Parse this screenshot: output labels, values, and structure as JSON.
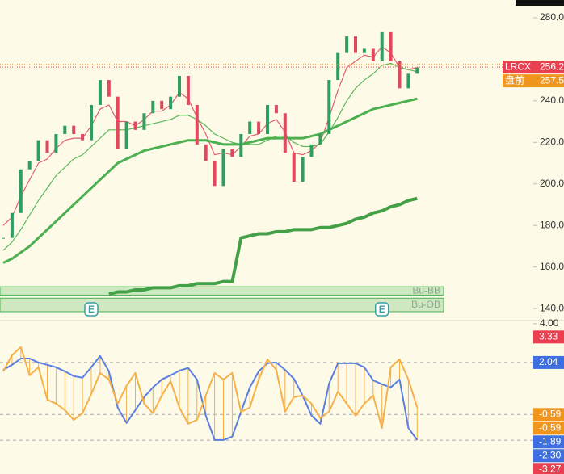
{
  "chart_data": [
    {
      "type": "candlestick",
      "closes": [
        174,
        186,
        207,
        211,
        221,
        215,
        224,
        228,
        224,
        221,
        238,
        250,
        242,
        217,
        230,
        226,
        234,
        240,
        236,
        242,
        252,
        238,
        219,
        211,
        199,
        217,
        213,
        224,
        230,
        224,
        238,
        234,
        215,
        201,
        213,
        219,
        224,
        250,
        263,
        271,
        263,
        265,
        259,
        273,
        259,
        246,
        253,
        256
      ],
      "up_color": "#2f9e5f",
      "down_color": "#e04a5f",
      "ylim": [
        135,
        288.5
      ],
      "yticks": [
        {
          "value": 140,
          "label": "140.0"
        },
        {
          "value": 160,
          "label": "160.0"
        },
        {
          "value": 180,
          "label": "180.0"
        },
        {
          "value": 200,
          "label": "200.0"
        },
        {
          "value": 220,
          "label": "220.0"
        },
        {
          "value": 240,
          "label": "240.0"
        },
        {
          "value": 280,
          "label": "280.0"
        }
      ],
      "lines": [
        {
          "color": "#e0606e",
          "width": 1.2,
          "values": [
            180,
            184,
            194,
            202,
            210,
            212,
            217,
            221,
            222,
            222,
            228,
            236,
            238,
            230,
            230,
            228,
            231,
            235,
            235,
            238,
            244,
            241,
            232,
            224,
            214,
            215,
            214,
            218,
            223,
            224,
            229,
            231,
            225,
            215,
            214,
            216,
            220,
            232,
            245,
            256,
            259,
            262,
            261,
            266,
            263,
            256,
            255,
            256
          ]
        },
        {
          "color": "#5cb85c",
          "width": 1.2,
          "values": [
            168,
            172,
            178,
            185,
            192,
            198,
            204,
            208,
            212,
            214,
            218,
            222,
            226,
            226,
            226,
            227,
            228,
            229,
            230,
            231,
            233,
            233,
            231,
            228,
            224,
            222,
            220,
            219,
            219,
            219,
            221,
            223,
            223,
            220,
            218,
            218,
            219,
            225,
            232,
            240,
            246,
            250,
            253,
            257,
            258,
            256,
            255,
            254
          ]
        },
        {
          "color": "#4caf50",
          "width": 3,
          "values": [
            162,
            164,
            167,
            170,
            174,
            178,
            182,
            186,
            190,
            194,
            198,
            202,
            206,
            210,
            212,
            214,
            216,
            217,
            218,
            219,
            220,
            221,
            221,
            221,
            220,
            219,
            219,
            219,
            220,
            221,
            222,
            222,
            222,
            222,
            222,
            223,
            224,
            226,
            228,
            230,
            232,
            234,
            236,
            237,
            238,
            239,
            240,
            241
          ]
        },
        {
          "color": "#43a047",
          "width": 4,
          "values": [
            null,
            null,
            null,
            null,
            null,
            null,
            null,
            null,
            null,
            null,
            null,
            null,
            147,
            148,
            148,
            149,
            149,
            150,
            150,
            150,
            151,
            151,
            152,
            152,
            152,
            153,
            153,
            174,
            175,
            176,
            176,
            177,
            177,
            178,
            178,
            178,
            179,
            179,
            180,
            181,
            183,
            184,
            186,
            187,
            189,
            190,
            192,
            193
          ]
        }
      ],
      "zones": [
        {
          "label": "Bu-BB",
          "range": [
            146.5,
            150.5
          ]
        },
        {
          "label": "Bu-OB",
          "range": [
            138.5,
            145
          ]
        }
      ],
      "events": [
        {
          "label": "E",
          "index": 10
        },
        {
          "label": "E",
          "index": 43
        }
      ],
      "price_labels": [
        {
          "label": "盘前",
          "value": 257.5,
          "color": "#f0961e"
        },
        {
          "label": "LRCX",
          "value": 256.2,
          "color": "#e8404f"
        }
      ]
    },
    {
      "type": "line",
      "ylim": [
        -3.6,
        4.16
      ],
      "yticks": [
        {
          "value": 4,
          "label": "4.00"
        }
      ],
      "series": [
        {
          "color": "#5b7fe0",
          "values": [
            1.67,
            1.92,
            2.24,
            2.24,
            2.04,
            1.92,
            1.8,
            1.59,
            1.35,
            1.27,
            1.8,
            2.37,
            1.59,
            -0.24,
            -1.02,
            -0.37,
            0.29,
            0.78,
            1.18,
            1.39,
            1.63,
            1.76,
            1.18,
            -0.65,
            -1.88,
            -1.88,
            -1.71,
            -0.45,
            0.78,
            1.59,
            2.0,
            2.04,
            1.67,
            1.22,
            0.37,
            -0.65,
            -1.06,
            0.98,
            2.0,
            2.0,
            2.0,
            1.8,
            1.14,
            0.94,
            0.78,
            1.18,
            -1.27,
            -1.88
          ]
        },
        {
          "color": "#f5b04a",
          "values": [
            1.59,
            2.41,
            2.82,
            1.39,
            1.8,
            0.16,
            -0.04,
            -0.37,
            -0.86,
            -0.53,
            0.45,
            1.51,
            1.18,
            -0.04,
            0.86,
            1.51,
            -0.04,
            -0.53,
            0.37,
            1.1,
            -0.24,
            -1.06,
            -0.86,
            0.37,
            1.51,
            1.18,
            1.51,
            -0.45,
            -0.24,
            1.18,
            2.2,
            1.67,
            -0.45,
            0.29,
            0.37,
            -0.04,
            -0.78,
            -0.45,
            0.57,
            -0.04,
            -0.65,
            -0.04,
            0.37,
            -1.27,
            1.8,
            2.2,
            1.18,
            -0.24
          ]
        }
      ],
      "levels": [
        2.04,
        -0.59,
        -1.89
      ],
      "value_labels": [
        {
          "value": 3.33,
          "label": "3.33",
          "color": "#e8404f"
        },
        {
          "value": 2.04,
          "label": "2.04",
          "color": "#3d6fe0"
        },
        {
          "value": -0.59,
          "label": "-0.59",
          "color": "#f0961e"
        },
        {
          "value": -0.59,
          "label": "-0.59",
          "color": "#f0961e"
        },
        {
          "value": -1.89,
          "label": "-1.89",
          "color": "#3d6fe0"
        },
        {
          "value": -2.3,
          "label": "-2.30",
          "color": "#3d6fe0"
        },
        {
          "value": -3.27,
          "label": "-3.27",
          "color": "#e8404f"
        }
      ]
    }
  ]
}
